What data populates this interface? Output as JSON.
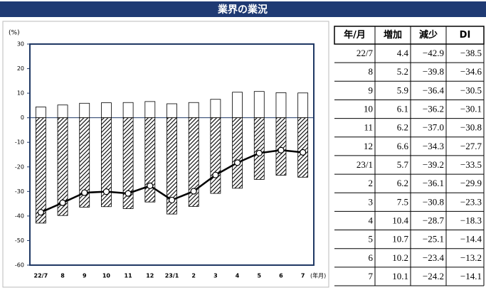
{
  "header": {
    "title": "業界の業況"
  },
  "chart_data": {
    "type": "bar",
    "unit_label": "(%)",
    "x_label": "(年月)",
    "categories": [
      "22/7",
      "8",
      "9",
      "10",
      "11",
      "12",
      "23/1",
      "2",
      "3",
      "4",
      "5",
      "6",
      "7"
    ],
    "series": [
      {
        "type": "bar",
        "color": "#ffffff",
        "values": [
          4.4,
          5.2,
          5.9,
          6.1,
          6.2,
          6.6,
          5.7,
          6.2,
          7.5,
          10.4,
          10.7,
          10.2,
          10.1
        ]
      },
      {
        "type": "bar",
        "color": "#000000",
        "hatch": true,
        "values": [
          -42.9,
          -39.8,
          -36.4,
          -36.2,
          -37.0,
          -34.3,
          -39.2,
          -36.1,
          -30.8,
          -28.7,
          -25.1,
          -23.4,
          -24.2
        ]
      },
      {
        "type": "line",
        "color": "#000000",
        "values": [
          -38.5,
          -34.6,
          -30.5,
          -30.1,
          -30.8,
          -27.7,
          -33.5,
          -29.9,
          -23.3,
          -18.3,
          -14.4,
          -13.2,
          -14.1
        ]
      }
    ],
    "ylim": [
      -60,
      30
    ],
    "yticks": [
      -60,
      -50,
      -40,
      -30,
      -20,
      -10,
      0,
      10,
      20,
      30
    ]
  },
  "table": {
    "columns": [
      "年/月",
      "増加",
      "減少",
      "DI"
    ],
    "rows": [
      [
        "22/7",
        "4.4",
        "−42.9",
        "−38.5"
      ],
      [
        "8",
        "5.2",
        "−39.8",
        "−34.6"
      ],
      [
        "9",
        "5.9",
        "−36.4",
        "−30.5"
      ],
      [
        "10",
        "6.1",
        "−36.2",
        "−30.1"
      ],
      [
        "11",
        "6.2",
        "−37.0",
        "−30.8"
      ],
      [
        "12",
        "6.6",
        "−34.3",
        "−27.7"
      ],
      [
        "23/1",
        "5.7",
        "−39.2",
        "−33.5"
      ],
      [
        "2",
        "6.2",
        "−36.1",
        "−29.9"
      ],
      [
        "3",
        "7.5",
        "−30.8",
        "−23.3"
      ],
      [
        "4",
        "10.4",
        "−28.7",
        "−18.3"
      ],
      [
        "5",
        "10.7",
        "−25.1",
        "−14.4"
      ],
      [
        "6",
        "10.2",
        "−23.4",
        "−13.2"
      ],
      [
        "7",
        "10.1",
        "−24.2",
        "−14.1"
      ]
    ]
  }
}
